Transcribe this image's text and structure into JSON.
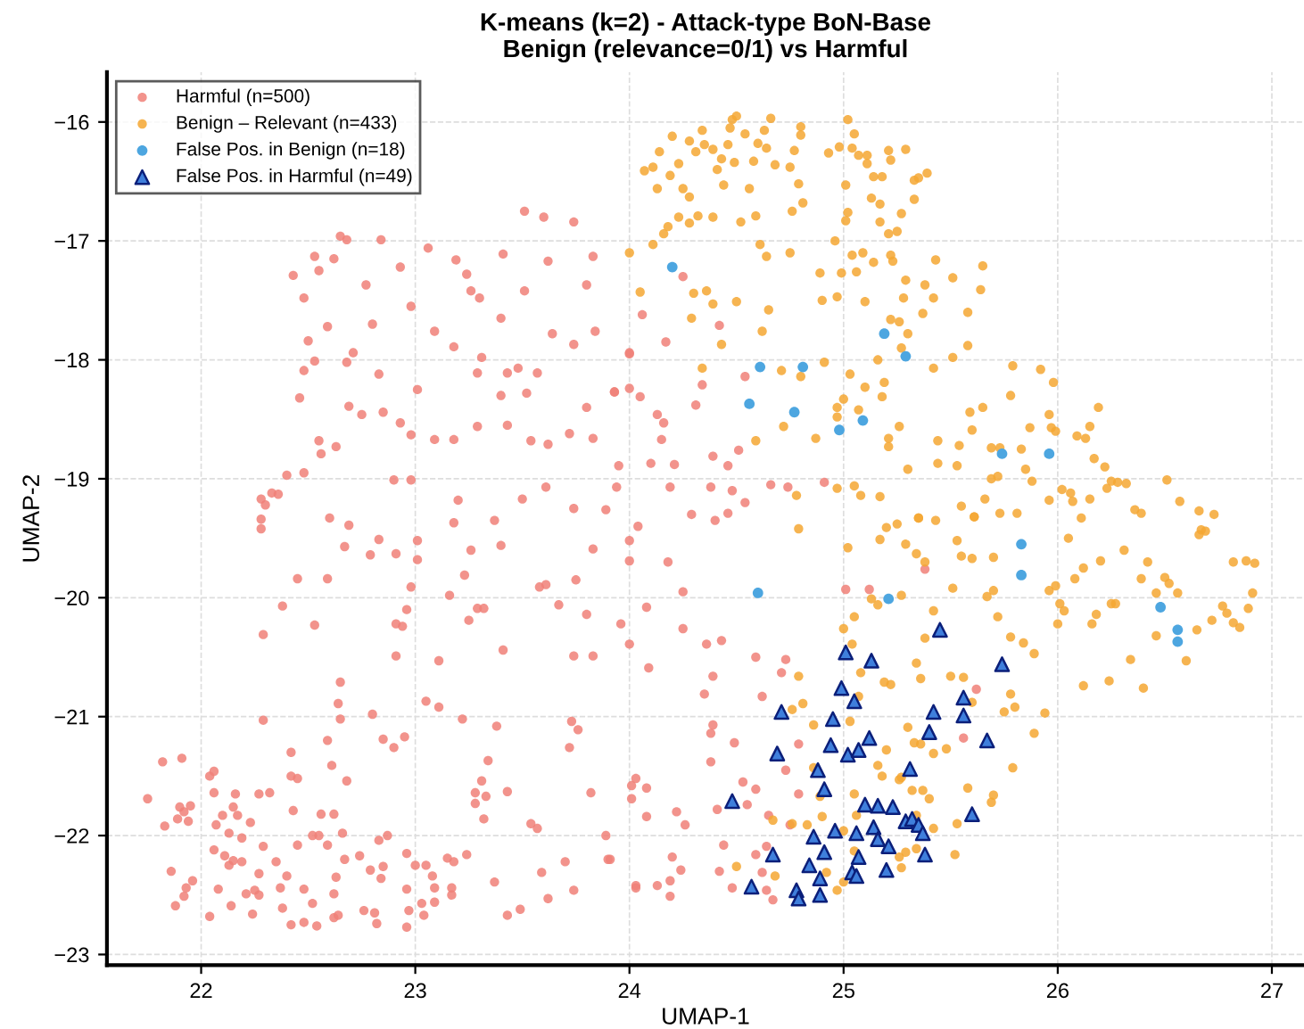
{
  "chart_data": {
    "type": "scatter",
    "title": "K-means (k=2) - Attack-type BoN-Base\nBenign (relevance=0/1) vs Harmful",
    "xlabel": "UMAP-1",
    "ylabel": "UMAP-2",
    "xlim": [
      21.56,
      27.15
    ],
    "ylim": [
      -23.09,
      -15.58
    ],
    "xticks": [
      22,
      23,
      24,
      25,
      26,
      27
    ],
    "yticks": [
      {
        "value": -23,
        "label": "−23"
      },
      {
        "value": -22,
        "label": "−22"
      },
      {
        "value": -21,
        "label": "−21"
      },
      {
        "value": -20,
        "label": "−20"
      },
      {
        "value": -19,
        "label": "−19"
      },
      {
        "value": -18,
        "label": "−18"
      },
      {
        "value": -17,
        "label": "−17"
      },
      {
        "value": -16,
        "label": "−16"
      }
    ],
    "grid": true,
    "legend": "top left",
    "series": [
      {
        "name": "Harmful (n=500)",
        "color": "#f08078",
        "marker": "circle",
        "x": [
          23.51,
          23.6,
          23.74,
          22.65,
          22.68,
          22.84,
          22.53,
          22.62,
          22.55,
          23.06,
          23.19,
          23.41,
          23.62,
          23.83,
          22.43,
          22.48,
          22.77,
          22.93,
          23.24,
          23.26,
          23.3,
          23.51,
          23.8,
          22.59,
          22.98,
          22.8,
          23.09,
          23.4,
          23.64,
          23.84,
          22.5,
          22.71,
          23.18,
          23.31,
          23.74,
          24.0,
          22.53,
          22.48,
          22.68,
          22.83,
          23.29,
          23.43,
          23.48,
          23.57,
          22.46,
          22.69,
          23.01,
          23.4,
          23.52,
          23.8,
          23.93,
          24.0,
          22.85,
          22.75,
          22.93,
          22.98,
          23.09,
          23.18,
          23.29,
          23.43,
          23.54,
          23.62,
          23.72,
          23.83,
          22.55,
          22.56,
          22.63,
          22.4,
          22.48,
          22.9,
          22.98,
          23.2,
          23.5,
          23.61,
          23.74,
          23.89,
          23.94,
          24.04,
          22.28,
          22.33,
          22.36,
          22.3,
          22.28,
          22.28,
          22.6,
          22.69,
          22.67,
          22.83,
          22.79,
          22.91,
          23.01,
          23.01,
          23.18,
          23.26,
          23.4,
          23.37,
          23.23,
          23.16,
          23.29,
          23.32,
          23.25,
          23.58,
          23.61,
          23.75,
          23.67,
          23.83,
          23.8,
          23.96,
          24.0,
          22.45,
          22.59,
          22.98,
          22.38,
          22.53,
          22.29,
          22.91,
          22.94,
          22.96,
          22.91,
          23.11,
          23.41,
          23.74,
          23.83,
          24.0,
          22.65,
          22.64,
          22.65,
          22.29,
          22.8,
          22.95,
          22.85,
          22.9,
          23.05,
          23.11,
          23.22,
          23.38,
          23.34,
          23.31,
          23.43,
          23.28,
          23.33,
          23.28,
          23.32,
          23.73,
          23.76,
          23.72,
          23.82,
          22.59,
          22.61,
          22.68,
          22.42,
          22.42,
          22.45,
          21.82,
          21.91,
          21.75,
          22.04,
          22.06,
          22.06,
          22.16,
          21.9,
          21.92,
          21.95,
          21.89,
          21.83,
          21.94,
          22.1,
          22.15,
          22.23,
          22.27,
          22.32,
          22.17,
          22.07,
          22.13,
          22.19,
          22.29,
          22.06,
          22.11,
          22.13,
          22.15,
          22.19,
          22.35,
          22.43,
          22.56,
          22.62,
          22.66,
          22.45,
          22.52,
          22.55,
          22.59,
          22.67,
          22.74,
          22.83,
          22.87,
          22.79,
          22.96,
          23.0,
          23.05,
          23.08,
          23.15,
          23.18,
          23.24,
          23.37,
          23.54,
          23.57,
          23.59,
          23.7,
          23.74,
          23.89,
          23.91,
          24.03,
          21.86,
          21.96,
          21.93,
          21.92,
          21.88,
          22.04,
          22.08,
          22.14,
          22.21,
          22.25,
          22.27,
          22.24,
          22.27,
          22.37,
          22.4,
          22.48,
          22.38,
          22.42,
          22.48,
          22.54,
          22.52,
          22.63,
          22.62,
          22.62,
          22.64,
          22.76,
          22.81,
          22.82,
          22.84,
          22.85,
          22.96,
          22.96,
          22.97,
          23.03,
          23.04,
          23.09,
          23.09,
          23.17,
          23.17,
          23.43,
          23.49,
          23.62,
          24.0,
          24.18,
          24.25,
          24.08,
          24.25,
          24.36,
          24.43,
          24.09,
          24.39,
          24.35,
          24.59,
          24.73,
          24.71,
          24.62,
          24.39,
          24.38,
          24.49,
          24.38,
          24.79,
          24.73,
          24.53,
          24.59,
          24.79,
          24.01,
          24.03,
          24.08,
          24.01,
          24.08,
          24.22,
          24.26,
          24.41,
          24.55,
          24.65,
          24.75,
          24.44,
          24.59,
          24.64,
          24.2,
          24.24,
          24.42,
          24.48,
          24.62,
          24.64,
          24.67,
          24.19,
          24.19,
          24.13,
          24.03,
          23.9,
          25.01,
          25.12,
          25.38,
          25.62,
          25.56,
          24.25,
          24.06,
          24.17,
          24.42,
          24.0,
          24.54,
          24.34,
          23.93,
          24.05,
          24.13,
          24.16,
          24.31,
          24.15,
          24.39,
          24.46,
          24.51,
          24.1,
          24.21,
          23.95,
          24.19,
          24.38,
          24.48,
          24.66,
          24.74,
          24.91,
          24.54,
          24.46,
          24.29,
          24.4
        ],
        "values": [
          -16.75,
          -16.8,
          -16.84,
          -16.96,
          -16.99,
          -16.99,
          -17.13,
          -17.15,
          -17.25,
          -17.06,
          -17.16,
          -17.11,
          -17.17,
          -17.13,
          -17.29,
          -17.48,
          -17.37,
          -17.22,
          -17.28,
          -17.42,
          -17.48,
          -17.42,
          -17.37,
          -17.72,
          -17.55,
          -17.7,
          -17.76,
          -17.65,
          -17.78,
          -17.76,
          -17.84,
          -17.94,
          -17.89,
          -17.98,
          -17.87,
          -17.95,
          -18.01,
          -18.09,
          -18.02,
          -18.12,
          -18.11,
          -18.11,
          -18.07,
          -18.11,
          -18.32,
          -18.39,
          -18.25,
          -18.3,
          -18.28,
          -18.4,
          -18.27,
          -18.24,
          -18.44,
          -18.46,
          -18.53,
          -18.63,
          -18.67,
          -18.67,
          -18.56,
          -18.55,
          -18.68,
          -18.71,
          -18.62,
          -18.66,
          -18.68,
          -18.79,
          -18.73,
          -18.97,
          -18.95,
          -19.01,
          -19.01,
          -19.18,
          -19.17,
          -19.07,
          -19.25,
          -19.26,
          -19.07,
          -19.4,
          -19.17,
          -19.12,
          -19.13,
          -19.22,
          -19.34,
          -19.42,
          -19.33,
          -19.39,
          -19.57,
          -19.51,
          -19.64,
          -19.63,
          -19.52,
          -19.68,
          -19.37,
          -19.6,
          -19.56,
          -19.35,
          -19.81,
          -19.98,
          -20.09,
          -20.09,
          -20.19,
          -19.91,
          -19.89,
          -19.85,
          -20.06,
          -19.59,
          -20.14,
          -20.22,
          -19.69,
          -19.84,
          -19.84,
          -19.91,
          -20.07,
          -20.23,
          -20.31,
          -20.22,
          -20.24,
          -20.1,
          -20.49,
          -20.53,
          -20.44,
          -20.49,
          -20.49,
          -20.39,
          -20.71,
          -20.89,
          -21.02,
          -21.03,
          -20.98,
          -21.17,
          -21.19,
          -21.26,
          -20.87,
          -20.92,
          -21.02,
          -21.08,
          -21.37,
          -21.54,
          -21.63,
          -21.64,
          -21.67,
          -21.73,
          -21.86,
          -21.04,
          -21.11,
          -21.26,
          -21.64,
          -21.2,
          -21.41,
          -21.54,
          -21.3,
          -21.5,
          -21.52,
          -21.38,
          -21.35,
          -21.69,
          -21.5,
          -21.46,
          -21.64,
          -21.65,
          -21.76,
          -21.8,
          -21.75,
          -21.86,
          -21.92,
          -21.88,
          -21.83,
          -21.76,
          -21.89,
          -21.65,
          -21.64,
          -21.83,
          -21.91,
          -21.98,
          -22.02,
          -22.09,
          -22.12,
          -22.17,
          -22.25,
          -22.21,
          -22.22,
          -22.22,
          -21.79,
          -21.82,
          -21.82,
          -21.98,
          -22.08,
          -22.0,
          -22.0,
          -22.08,
          -22.2,
          -22.17,
          -22.04,
          -22.0,
          -22.29,
          -22.15,
          -22.25,
          -22.25,
          -22.34,
          -22.19,
          -22.22,
          -22.16,
          -22.39,
          -21.9,
          -21.94,
          -22.31,
          -22.22,
          -22.46,
          -22.0,
          -22.2,
          -22.44,
          -22.3,
          -22.38,
          -22.44,
          -22.51,
          -22.59,
          -22.68,
          -22.45,
          -22.59,
          -22.49,
          -22.46,
          -22.32,
          -22.66,
          -22.5,
          -22.44,
          -22.34,
          -22.45,
          -22.61,
          -22.75,
          -22.73,
          -22.76,
          -22.57,
          -22.35,
          -22.49,
          -22.69,
          -22.67,
          -22.63,
          -22.65,
          -22.74,
          -22.36,
          -22.26,
          -22.45,
          -22.77,
          -22.63,
          -22.57,
          -22.67,
          -22.44,
          -22.56,
          -22.44,
          -22.5,
          -22.67,
          -22.62,
          -22.53,
          -19.52,
          -19.7,
          -19.95,
          -20.08,
          -20.26,
          -20.39,
          -20.36,
          -20.59,
          -20.66,
          -20.81,
          -20.5,
          -20.52,
          -20.63,
          -20.83,
          -21.07,
          -21.14,
          -21.22,
          -21.38,
          -21.23,
          -21.45,
          -21.55,
          -21.61,
          -21.65,
          -21.58,
          -21.52,
          -21.6,
          -21.69,
          -21.84,
          -21.8,
          -21.91,
          -21.78,
          -21.74,
          -21.83,
          -21.91,
          -22.08,
          -22.16,
          -22.09,
          -22.18,
          -22.29,
          -22.3,
          -22.44,
          -22.31,
          -22.46,
          -22.54,
          -22.38,
          -22.51,
          -22.42,
          -22.42,
          -22.2,
          -19.93,
          -19.93,
          -19.76,
          -20.77,
          -21.18,
          -17.3,
          -17.62,
          -17.85,
          -17.71,
          -17.94,
          -18.14,
          -18.21,
          -18.27,
          -18.31,
          -18.46,
          -18.53,
          -18.38,
          -18.67,
          -18.81,
          -18.89,
          -18.76,
          -18.87,
          -18.88,
          -18.89,
          -19.07,
          -19.07,
          -19.1,
          -19.05,
          -19.07,
          -19.03,
          -19.2,
          -19.29,
          -19.3,
          -19.35
        ]
      },
      {
        "name": "Benign – Relevant (n=433)",
        "color": "#f5a732",
        "marker": "circle",
        "x": [
          24.0,
          24.07,
          24.11,
          24.13,
          24.14,
          24.11,
          24.16,
          24.18,
          24.19,
          24.2,
          24.23,
          24.23,
          24.25,
          24.28,
          24.28,
          24.28,
          24.31,
          24.32,
          24.34,
          24.35,
          24.39,
          24.41,
          24.43,
          24.39,
          24.44,
          24.46,
          24.47,
          24.49,
          24.48,
          24.5,
          24.52,
          24.54,
          24.56,
          24.58,
          24.59,
          24.6,
          24.63,
          24.64,
          24.66,
          24.68,
          24.75,
          24.76,
          24.77,
          24.79,
          24.8,
          24.81,
          24.8,
          24.61,
          24.64,
          24.75,
          24.93,
          24.98,
          25.01,
          25.02,
          25.01,
          25.02,
          25.05,
          25.04,
          25.07,
          25.11,
          25.11,
          25.14,
          25.18,
          25.13,
          25.17,
          25.17,
          25.21,
          25.25,
          25.21,
          25.22,
          25.29,
          25.27,
          25.33,
          25.33,
          25.35,
          25.39,
          24.96,
          25.04,
          25.09,
          25.14,
          25.22,
          25.23,
          25.29,
          25.38,
          25.43,
          25.51,
          25.65,
          24.89,
          24.99,
          25.06,
          24.97,
          24.9,
          25.1,
          25.28,
          25.42,
          25.37,
          25.26,
          25.22,
          25.58,
          25.64,
          24.65,
          24.5,
          24.39,
          24.3,
          24.29,
          24.36,
          24.05,
          24.62,
          24.43,
          24.34,
          24.71,
          24.8,
          24.91,
          25.03,
          25.1,
          25.19,
          25.18,
          25.16,
          25.27,
          25.3,
          25.42,
          25.51,
          25.58,
          25.79,
          25.92,
          25.98,
          25.78,
          25.65,
          25.59,
          25.6,
          25.87,
          25.96,
          25.97,
          25.99,
          26.19,
          26.15,
          26.09,
          26.13,
          26.17,
          26.22,
          26.25,
          26.28,
          26.32,
          26.51,
          26.57,
          26.66,
          26.73,
          26.67,
          24.97,
          24.97,
          25.0,
          25.07,
          24.72,
          24.87,
          24.59,
          25.21,
          25.21,
          25.26,
          25.44,
          25.3,
          25.44,
          25.53,
          25.54,
          25.69,
          25.73,
          25.83,
          25.69,
          25.72,
          25.85,
          25.88,
          24.97,
          25.05,
          25.08,
          25.17,
          24.78,
          25.35,
          25.43,
          25.55,
          25.61,
          25.66,
          25.73,
          25.81,
          25.96,
          26.02,
          26.06,
          26.07,
          26.11,
          26.15,
          26.23,
          26.36,
          26.39,
          24.79,
          25.02,
          25.2,
          25.25,
          25.29,
          25.35,
          25.34,
          25.38,
          25.17,
          25.13,
          25.16,
          25.27,
          25.05,
          25.0,
          25.04,
          25.42,
          25.38,
          25.51,
          25.55,
          25.6,
          25.53,
          25.61,
          25.7,
          25.67,
          25.7,
          25.72,
          25.78,
          25.84,
          25.89,
          25.96,
          25.99,
          26.0,
          26.01,
          26.03,
          26.05,
          26.08,
          26.12,
          26.16,
          26.18,
          26.2,
          26.25,
          26.27,
          26.31,
          26.34,
          26.39,
          26.4,
          26.42,
          26.46,
          26.46,
          26.5,
          26.52,
          26.56,
          26.6,
          26.65,
          26.66,
          26.69,
          26.72,
          26.77,
          26.79,
          26.82,
          26.82,
          26.85,
          26.88,
          26.89,
          26.91,
          26.92,
          26.12,
          26.24,
          25.94,
          25.89,
          25.79,
          25.7,
          25.69,
          25.58,
          25.53,
          25.52,
          25.6,
          25.8,
          25.78,
          25.75,
          25.56,
          25.5,
          25.34,
          25.36,
          25.22,
          25.19,
          25.08,
          25.07,
          25.03,
          24.81,
          24.76,
          24.86,
          24.79,
          25.33,
          25.36,
          25.48,
          25.42,
          25.3,
          25.2,
          25.16,
          25.18,
          25.26,
          25.27,
          25.32,
          25.37,
          25.4,
          25.05,
          25.06,
          25.0,
          24.89,
          24.86,
          24.9,
          24.83,
          24.76,
          24.67,
          25.34,
          25.42,
          25.34,
          25.29,
          25.26,
          25.27,
          25.05,
          24.5,
          24.92,
          25.0,
          24.97,
          24.68
        ],
        "values": [
          -17.1,
          -16.41,
          -16.38,
          -16.56,
          -16.25,
          -17.03,
          -16.94,
          -16.88,
          -16.45,
          -16.12,
          -16.35,
          -16.8,
          -16.56,
          -16.16,
          -16.63,
          -16.85,
          -16.25,
          -16.79,
          -16.07,
          -16.19,
          -16.23,
          -16.4,
          -16.31,
          -16.8,
          -16.53,
          -16.19,
          -16.05,
          -16.34,
          -15.98,
          -15.95,
          -16.84,
          -16.1,
          -16.56,
          -16.33,
          -16.79,
          -16.18,
          -16.07,
          -16.22,
          -15.97,
          -16.36,
          -16.38,
          -16.75,
          -16.24,
          -16.52,
          -16.11,
          -16.68,
          -16.04,
          -17.03,
          -17.13,
          -17.1,
          -16.26,
          -16.21,
          -16.53,
          -16.76,
          -16.83,
          -15.98,
          -16.1,
          -16.22,
          -16.28,
          -16.28,
          -16.35,
          -16.46,
          -16.46,
          -16.64,
          -16.69,
          -16.84,
          -16.94,
          -16.92,
          -16.24,
          -16.32,
          -16.23,
          -16.77,
          -16.65,
          -16.49,
          -16.47,
          -16.43,
          -17.0,
          -17.12,
          -17.1,
          -17.18,
          -17.12,
          -17.17,
          -17.33,
          -17.37,
          -17.16,
          -17.31,
          -17.21,
          -17.27,
          -17.27,
          -17.26,
          -17.47,
          -17.5,
          -17.51,
          -17.48,
          -17.48,
          -17.61,
          -17.68,
          -17.66,
          -17.6,
          -17.41,
          -17.58,
          -17.51,
          -17.53,
          -17.44,
          -17.65,
          -17.42,
          -17.43,
          -17.76,
          -17.87,
          -18.07,
          -18.09,
          -18.14,
          -18.02,
          -18.12,
          -18.23,
          -18.19,
          -18.31,
          -18.0,
          -17.9,
          -17.78,
          -18.07,
          -17.98,
          -17.88,
          -18.05,
          -18.08,
          -18.19,
          -18.3,
          -18.4,
          -18.44,
          -18.59,
          -18.57,
          -18.46,
          -18.57,
          -18.6,
          -18.4,
          -18.56,
          -18.64,
          -18.66,
          -18.83,
          -18.9,
          -19.02,
          -19.03,
          -19.04,
          -19.01,
          -19.19,
          -19.27,
          -19.3,
          -19.43,
          -18.4,
          -18.48,
          -18.33,
          -18.42,
          -18.56,
          -18.66,
          -18.68,
          -18.66,
          -18.73,
          -18.56,
          -18.68,
          -18.92,
          -18.87,
          -18.89,
          -18.72,
          -18.74,
          -18.74,
          -18.75,
          -19.0,
          -18.98,
          -18.92,
          -19.02,
          -19.08,
          -19.06,
          -19.14,
          -19.15,
          -19.14,
          -19.33,
          -19.35,
          -19.23,
          -19.32,
          -19.17,
          -19.29,
          -19.29,
          -19.18,
          -19.09,
          -19.12,
          -19.19,
          -19.33,
          -19.17,
          -19.08,
          -19.26,
          -19.29,
          -19.42,
          -19.58,
          -19.41,
          -19.38,
          -19.55,
          -19.33,
          -19.63,
          -19.7,
          -19.51,
          -20.01,
          -20.06,
          -19.98,
          -20.16,
          -20.26,
          -20.39,
          -20.11,
          -20.34,
          -19.92,
          -19.65,
          -19.67,
          -19.52,
          -19.32,
          -19.66,
          -19.99,
          -19.94,
          -20.16,
          -20.33,
          -20.38,
          -20.47,
          -19.94,
          -19.9,
          -20.22,
          -20.05,
          -20.11,
          -19.5,
          -19.84,
          -19.75,
          -20.22,
          -20.14,
          -19.69,
          -20.05,
          -20.05,
          -19.6,
          -20.52,
          -19.84,
          -20.76,
          -19.7,
          -20.32,
          -19.96,
          -19.83,
          -19.88,
          -19.96,
          -20.53,
          -20.27,
          -19.47,
          -19.44,
          -20.19,
          -20.07,
          -20.13,
          -20.21,
          -19.7,
          -20.25,
          -19.69,
          -20.09,
          -19.96,
          -19.71,
          -20.74,
          -20.7,
          -20.97,
          -21.14,
          -21.43,
          -21.66,
          -21.72,
          -21.6,
          -21.9,
          -22.16,
          -20.88,
          -20.92,
          -20.81,
          -20.96,
          -20.67,
          -20.66,
          -20.55,
          -20.68,
          -20.73,
          -20.71,
          -20.63,
          -20.83,
          -21.04,
          -20.89,
          -20.94,
          -21.07,
          -20.66,
          -21.22,
          -21.23,
          -21.27,
          -21.31,
          -21.09,
          -21.28,
          -21.41,
          -21.5,
          -21.53,
          -21.51,
          -21.62,
          -21.62,
          -21.69,
          -21.65,
          -21.83,
          -21.96,
          -21.67,
          -21.43,
          -21.84,
          -21.91,
          -21.9,
          -21.87,
          -21.83,
          -21.94,
          -22.11,
          -22.14,
          -22.18,
          -22.27,
          -22.13,
          -22.26,
          -22.31,
          -22.39,
          -22.46,
          -22.34
        ]
      },
      {
        "name": "False Pos. in Benign (n=18)",
        "color": "#4da6e0",
        "marker": "circle",
        "x": [
          24.2,
          25.19,
          25.29,
          24.61,
          24.81,
          24.56,
          24.77,
          25.09,
          24.98,
          25.74,
          25.96,
          25.83,
          25.83,
          24.6,
          25.21,
          26.48,
          26.56,
          26.56
        ],
        "values": [
          -17.22,
          -17.78,
          -17.97,
          -18.06,
          -18.06,
          -18.37,
          -18.44,
          -18.51,
          -18.59,
          -18.79,
          -18.79,
          -19.55,
          -19.81,
          -19.96,
          -20.01,
          -20.08,
          -20.27,
          -20.37
        ]
      },
      {
        "name": "False Pos. in Harmful (n=49)",
        "color": "#3f7fdc",
        "marker": "triangle",
        "x": [
          25.45,
          25.01,
          25.13,
          25.74,
          24.99,
          25.05,
          25.56,
          24.71,
          24.95,
          25.42,
          25.56,
          25.4,
          25.12,
          25.67,
          24.94,
          24.69,
          25.02,
          25.07,
          24.88,
          25.31,
          24.91,
          24.48,
          25.1,
          25.16,
          25.23,
          25.29,
          25.32,
          25.35,
          25.6,
          24.96,
          25.06,
          25.14,
          25.37,
          24.86,
          25.16,
          25.21,
          24.67,
          24.91,
          25.07,
          25.38,
          24.84,
          25.04,
          25.06,
          25.2,
          24.89,
          24.57,
          24.78,
          24.79,
          24.89
        ],
        "values": [
          -20.27,
          -20.46,
          -20.53,
          -20.56,
          -20.76,
          -20.87,
          -20.84,
          -20.96,
          -21.02,
          -20.96,
          -20.99,
          -21.13,
          -21.18,
          -21.2,
          -21.24,
          -21.31,
          -21.32,
          -21.28,
          -21.45,
          -21.44,
          -21.61,
          -21.71,
          -21.74,
          -21.75,
          -21.76,
          -21.88,
          -21.86,
          -21.91,
          -21.82,
          -21.96,
          -21.98,
          -21.93,
          -21.98,
          -22.01,
          -22.03,
          -22.09,
          -22.16,
          -22.14,
          -22.18,
          -22.16,
          -22.25,
          -22.31,
          -22.34,
          -22.29,
          -22.36,
          -22.43,
          -22.46,
          -22.53,
          -22.5
        ]
      }
    ]
  }
}
